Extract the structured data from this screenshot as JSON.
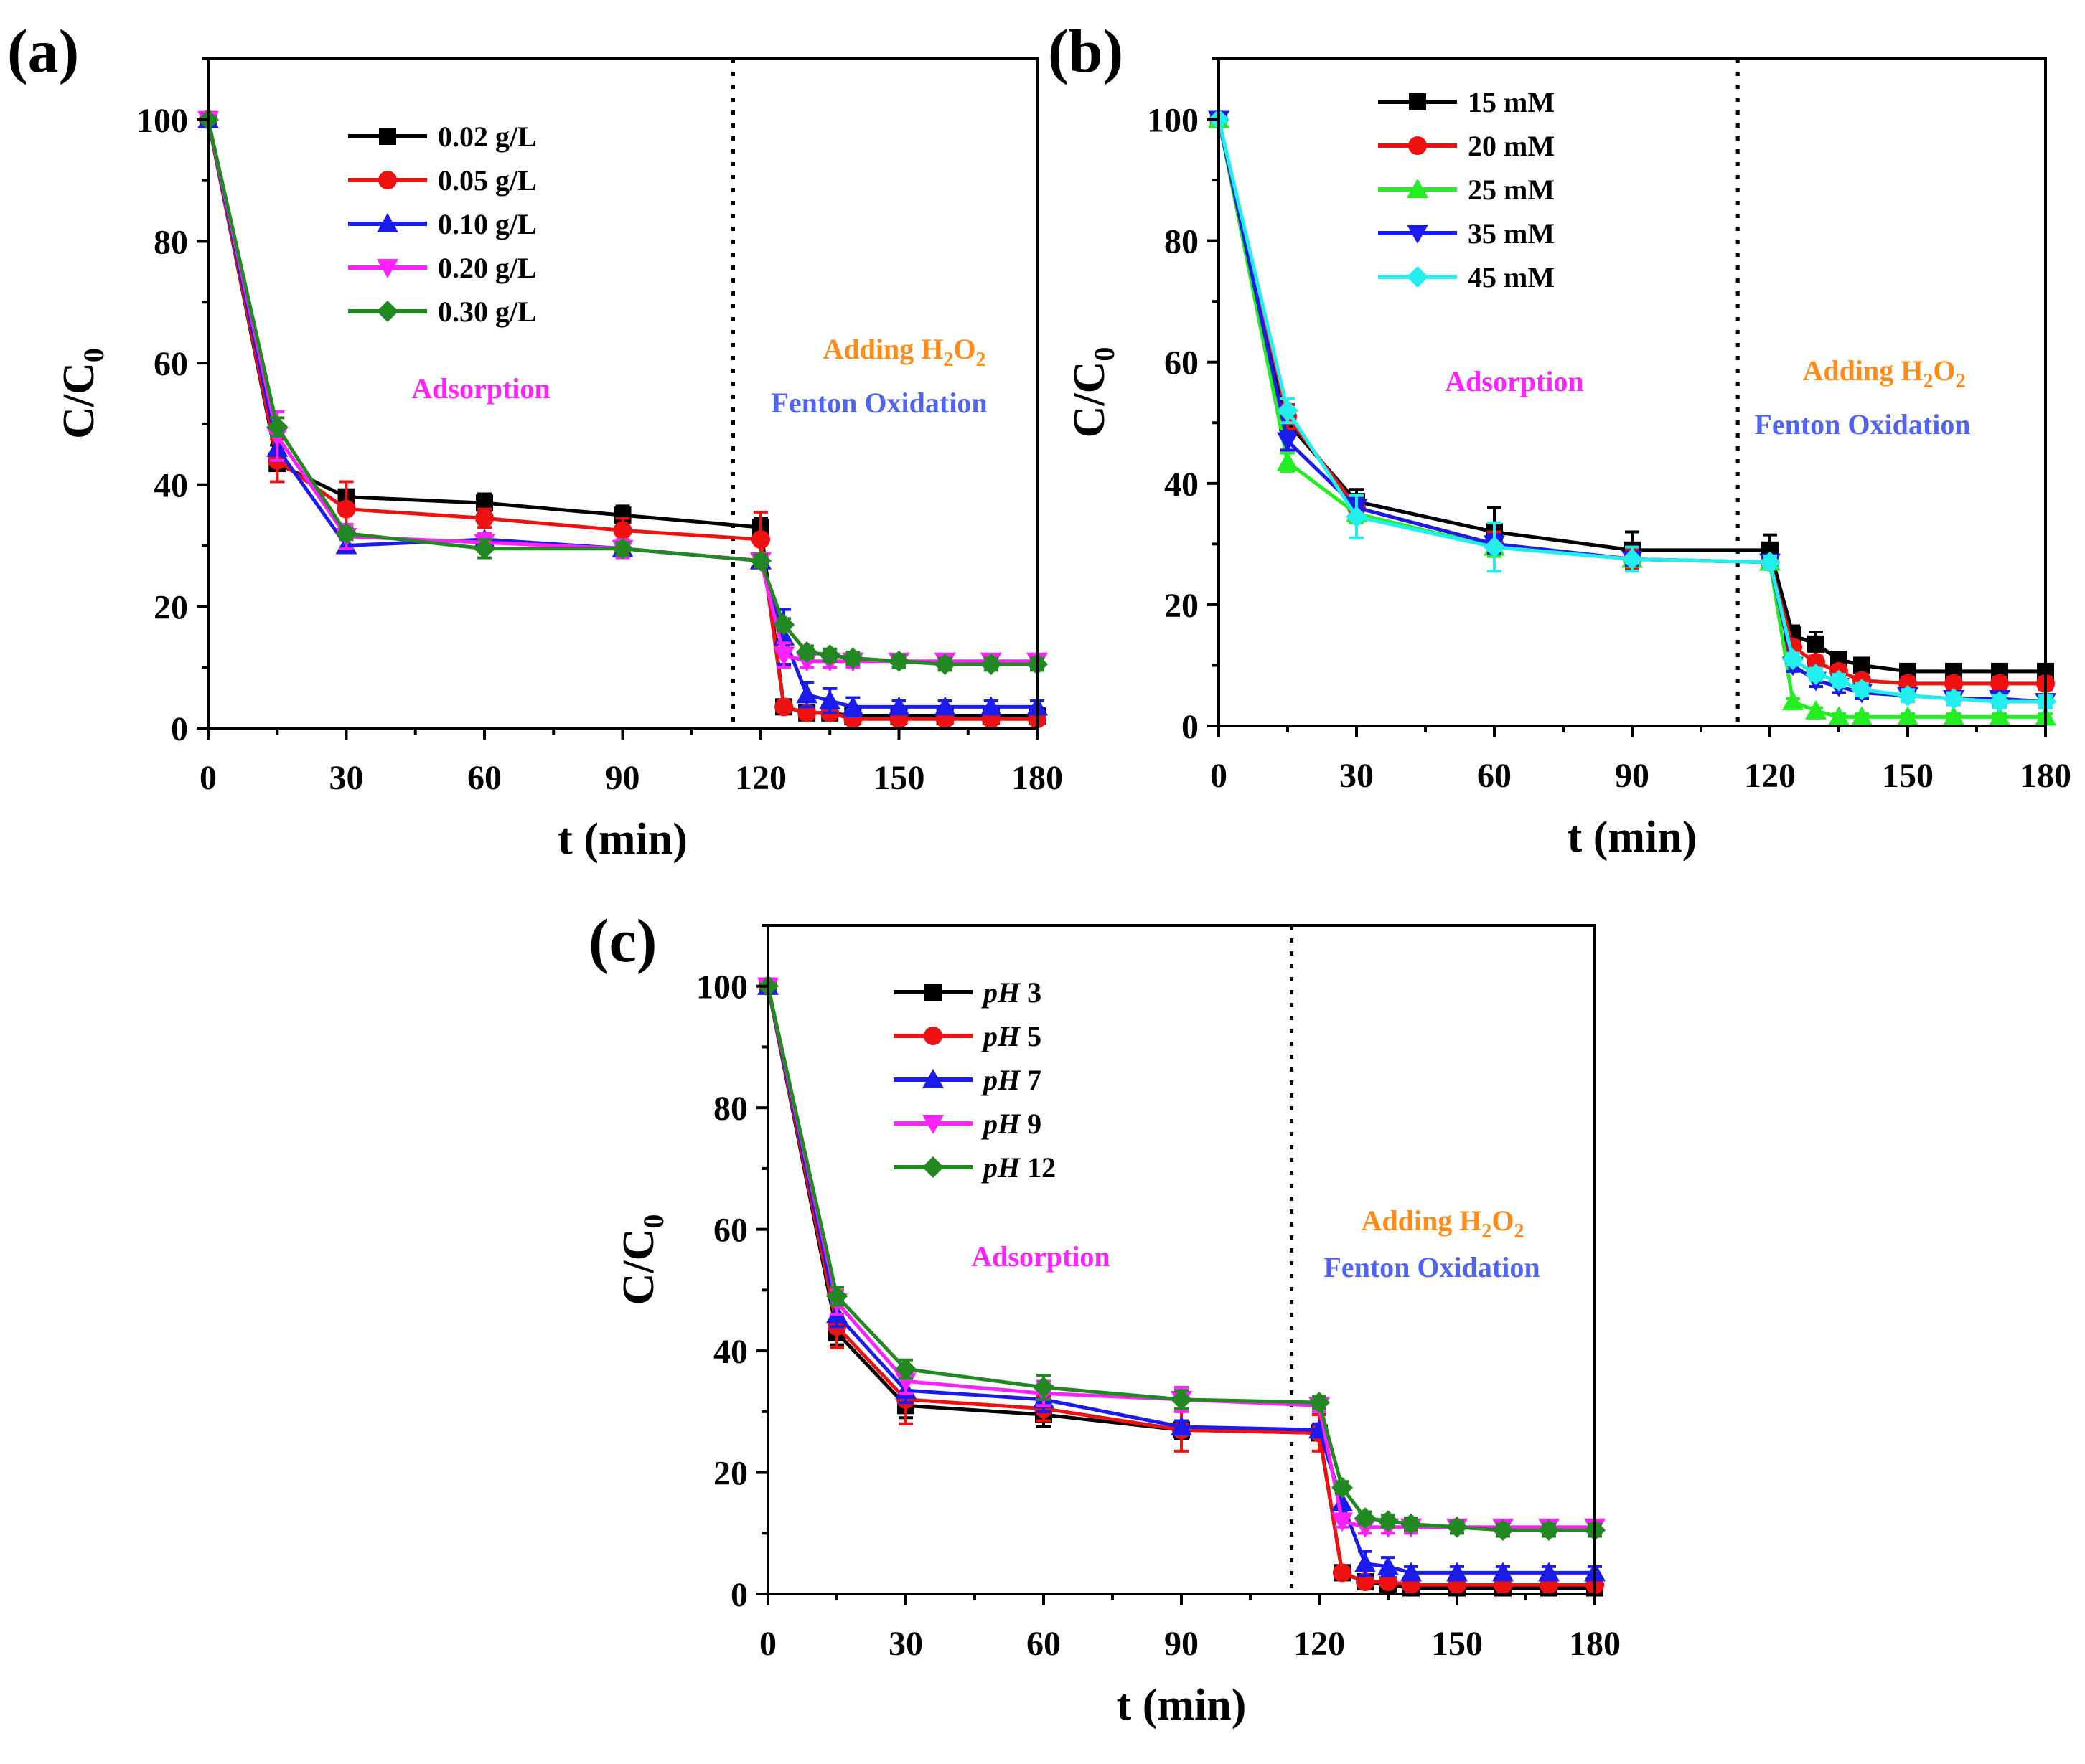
{
  "colors": {
    "black": "#000000",
    "red": "#ee1111",
    "blue": "#1b1bee",
    "magenta": "#ff22ff",
    "green": "#228822",
    "cyan": "#22eeee",
    "lime": "#22ee22",
    "adsorption_text": "#ff22ff",
    "adding_text": "#ff8c1a",
    "fenton_text": "#4f63f5"
  },
  "chart_data": [
    {
      "id": "a",
      "panel_label": "(a)",
      "type": "line",
      "xlabel": "t (min)",
      "ylabel_main": "C/C",
      "ylabel_sub": "0",
      "xlim": [
        0,
        180
      ],
      "ylim": [
        0,
        110
      ],
      "xticks": [
        "0",
        "30",
        "60",
        "90",
        "120",
        "150",
        "180"
      ],
      "yticks": [
        "0",
        "20",
        "40",
        "60",
        "80",
        "100"
      ],
      "divider_x": 114,
      "annotations": {
        "adsorption": "Adsorption",
        "adding_prefix": "Adding H",
        "adding_sub1": "2",
        "adding_mid": "O",
        "adding_sub2": "2",
        "fenton": "Fenton Oxidation"
      },
      "series": [
        {
          "name": "0.02 g/L",
          "color": "#000000",
          "marker": "square",
          "x": [
            0,
            15,
            30,
            60,
            90,
            120,
            125,
            130,
            135,
            140,
            150,
            160,
            170,
            180
          ],
          "y": [
            100,
            43.5,
            38,
            37,
            35,
            33,
            3.5,
            2.5,
            2.5,
            2,
            2,
            2,
            2,
            2
          ],
          "err": [
            0,
            3,
            1,
            1.5,
            1.5,
            1.5,
            0.5,
            0.5,
            0.5,
            0.5,
            0.5,
            0.5,
            0.5,
            0.5
          ]
        },
        {
          "name": "0.05 g/L",
          "color": "#ee1111",
          "marker": "circle",
          "x": [
            0,
            15,
            30,
            60,
            90,
            120,
            125,
            130,
            135,
            140,
            150,
            160,
            170,
            180
          ],
          "y": [
            100,
            44,
            36,
            34.5,
            32.5,
            31,
            3.5,
            2.5,
            2.5,
            1.5,
            1.5,
            1.5,
            1.5,
            1.5
          ],
          "err": [
            0,
            3.5,
            4.5,
            1.5,
            2,
            4.5,
            0.5,
            0.5,
            0.5,
            0.5,
            0.5,
            0.5,
            0.5,
            0.5
          ]
        },
        {
          "name": "0.10 g/L",
          "color": "#1b1bee",
          "marker": "triangle-up",
          "x": [
            0,
            15,
            30,
            60,
            90,
            120,
            125,
            130,
            135,
            140,
            150,
            160,
            170,
            180
          ],
          "y": [
            100,
            46,
            30,
            31,
            29.5,
            27.5,
            15,
            5.5,
            4.5,
            3.5,
            3.5,
            3.5,
            3.5,
            3.5
          ],
          "err": [
            0,
            2,
            1,
            1,
            1,
            1,
            4.5,
            2,
            2,
            1.5,
            1,
            1,
            1,
            1
          ]
        },
        {
          "name": "0.20 g/L",
          "color": "#ff22ff",
          "marker": "triangle-down",
          "x": [
            0,
            15,
            30,
            60,
            90,
            120,
            125,
            130,
            135,
            140,
            150,
            160,
            170,
            180
          ],
          "y": [
            100,
            48,
            31.5,
            30.5,
            29.5,
            27.5,
            12,
            11,
            11,
            11,
            11,
            11,
            11,
            11
          ],
          "err": [
            0,
            4,
            2,
            1.5,
            1.5,
            1,
            2,
            1,
            1,
            1,
            1,
            1,
            1,
            1
          ]
        },
        {
          "name": "0.30 g/L",
          "color": "#228822",
          "marker": "diamond",
          "x": [
            0,
            15,
            30,
            60,
            90,
            120,
            125,
            130,
            135,
            140,
            150,
            160,
            170,
            180
          ],
          "y": [
            100,
            49.5,
            32,
            29.5,
            29.5,
            27.5,
            17,
            12.5,
            12,
            11.5,
            11,
            10.5,
            10.5,
            10.5
          ],
          "err": [
            0,
            1.5,
            1,
            1.5,
            1,
            1,
            1,
            1,
            1,
            1,
            1,
            1,
            1,
            1
          ]
        }
      ]
    },
    {
      "id": "b",
      "panel_label": "(b)",
      "type": "line",
      "xlabel": "t (min)",
      "ylabel_main": "C/C",
      "ylabel_sub": "0",
      "xlim": [
        0,
        180
      ],
      "ylim": [
        0,
        110
      ],
      "xticks": [
        "0",
        "30",
        "60",
        "90",
        "120",
        "150",
        "180"
      ],
      "yticks": [
        "0",
        "20",
        "40",
        "60",
        "80",
        "100"
      ],
      "divider_x": 113,
      "annotations": {
        "adsorption": "Adsorption",
        "adding_prefix": "Adding H",
        "adding_sub1": "2",
        "adding_mid": "O",
        "adding_sub2": "2",
        "fenton": "Fenton Oxidation"
      },
      "series": [
        {
          "name": "15 mM",
          "color": "#000000",
          "marker": "square",
          "x": [
            0,
            15,
            30,
            60,
            90,
            120,
            125,
            130,
            135,
            140,
            150,
            160,
            170,
            180
          ],
          "y": [
            100,
            50,
            37,
            32,
            29,
            29,
            15,
            13.5,
            11,
            10,
            9,
            9,
            9,
            9
          ],
          "err": [
            0,
            2,
            2,
            4,
            3,
            2.5,
            1.5,
            2,
            1,
            1,
            1,
            1,
            1,
            1
          ]
        },
        {
          "name": "20 mM",
          "color": "#ee1111",
          "marker": "circle",
          "x": [
            0,
            15,
            30,
            60,
            90,
            120,
            125,
            130,
            135,
            140,
            150,
            160,
            170,
            180
          ],
          "y": [
            100,
            51,
            36,
            30,
            27.5,
            27,
            13,
            10.5,
            9,
            7.5,
            7,
            7,
            7,
            7
          ],
          "err": [
            0,
            2,
            1.5,
            2,
            1.5,
            1,
            1,
            1,
            1,
            1,
            1,
            1,
            1,
            1
          ]
        },
        {
          "name": "25 mM",
          "color": "#22ee22",
          "marker": "triangle-up",
          "x": [
            0,
            15,
            30,
            60,
            90,
            120,
            125,
            130,
            135,
            140,
            150,
            160,
            170,
            180
          ],
          "y": [
            100,
            43.5,
            35,
            29.5,
            27.5,
            27,
            4,
            2.5,
            1.5,
            1.5,
            1.5,
            1.5,
            1.5,
            1.5
          ],
          "err": [
            0,
            1.5,
            1.5,
            1.5,
            1,
            1,
            0.5,
            0.5,
            0.5,
            0.5,
            0.5,
            0.5,
            0.5,
            0.5
          ]
        },
        {
          "name": "35 mM",
          "color": "#1b1bee",
          "marker": "triangle-down",
          "x": [
            0,
            15,
            30,
            60,
            90,
            120,
            125,
            130,
            135,
            140,
            150,
            160,
            170,
            180
          ],
          "y": [
            100,
            47,
            36,
            30,
            27.5,
            27,
            10,
            7.5,
            6.5,
            5.5,
            5,
            4.5,
            4.5,
            4
          ],
          "err": [
            0,
            1.5,
            1.5,
            1.5,
            1,
            1,
            1,
            1,
            1,
            1,
            1,
            1,
            1,
            1
          ]
        },
        {
          "name": "45 mM",
          "color": "#22eeee",
          "marker": "diamond",
          "x": [
            0,
            15,
            30,
            60,
            90,
            120,
            125,
            130,
            135,
            140,
            150,
            160,
            170,
            180
          ],
          "y": [
            100,
            52,
            34.5,
            29.5,
            27.5,
            27,
            11,
            8.5,
            7.5,
            6,
            5,
            4.5,
            4,
            4
          ],
          "err": [
            0,
            2,
            3.5,
            4,
            2,
            1,
            1,
            1,
            1,
            1,
            1,
            1,
            1,
            1
          ]
        }
      ]
    },
    {
      "id": "c",
      "panel_label": "(c)",
      "type": "line",
      "xlabel": "t (min)",
      "ylabel_main": "C/C",
      "ylabel_sub": "0",
      "xlim": [
        0,
        180
      ],
      "ylim": [
        0,
        110
      ],
      "xticks": [
        "0",
        "30",
        "60",
        "90",
        "120",
        "150",
        "180"
      ],
      "yticks": [
        "0",
        "20",
        "40",
        "60",
        "80",
        "100"
      ],
      "divider_x": 114,
      "annotations": {
        "adsorption": "Adsorption",
        "adding_prefix": "Adding H",
        "adding_sub1": "2",
        "adding_mid": "O",
        "adding_sub2": "2",
        "fenton": "Fenton Oxidation"
      },
      "series": [
        {
          "name": "pH 3",
          "name_italic": "pH",
          "name_rest": " 3",
          "color": "#000000",
          "marker": "square",
          "x": [
            0,
            15,
            30,
            60,
            90,
            120,
            125,
            130,
            135,
            140,
            150,
            160,
            170,
            180
          ],
          "y": [
            100,
            43,
            31,
            29.5,
            27,
            26.5,
            3.5,
            2,
            1.5,
            1,
            1,
            1,
            1,
            1
          ],
          "err": [
            0,
            2,
            2,
            2,
            1.5,
            1,
            0.5,
            0.5,
            0.5,
            0.5,
            0.5,
            0.5,
            0.5,
            0.5
          ]
        },
        {
          "name": "pH 5",
          "name_italic": "pH",
          "name_rest": " 5",
          "color": "#ee1111",
          "marker": "circle",
          "x": [
            0,
            15,
            30,
            60,
            90,
            120,
            125,
            130,
            135,
            140,
            150,
            160,
            170,
            180
          ],
          "y": [
            100,
            44,
            32,
            30.5,
            27,
            26.5,
            3.5,
            2,
            2,
            1.5,
            1.5,
            1.5,
            1.5,
            1.5
          ],
          "err": [
            0,
            3.5,
            4,
            2,
            3.5,
            3,
            0.5,
            0.5,
            0.5,
            0.5,
            0.5,
            0.5,
            0.5,
            0.5
          ]
        },
        {
          "name": "pH 7",
          "name_italic": "pH",
          "name_rest": " 7",
          "color": "#1b1bee",
          "marker": "triangle-up",
          "x": [
            0,
            15,
            30,
            60,
            90,
            120,
            125,
            130,
            135,
            140,
            150,
            160,
            170,
            180
          ],
          "y": [
            100,
            46,
            33.5,
            32,
            27.5,
            27,
            15,
            5,
            4.5,
            3.5,
            3.5,
            3.5,
            3.5,
            3.5
          ],
          "err": [
            0,
            2,
            2,
            2,
            1,
            1,
            2,
            2,
            1.5,
            1,
            1,
            1,
            1,
            1
          ]
        },
        {
          "name": "pH 9",
          "name_italic": "pH",
          "name_rest": " 9",
          "color": "#ff22ff",
          "marker": "triangle-down",
          "x": [
            0,
            15,
            30,
            60,
            90,
            120,
            125,
            130,
            135,
            140,
            150,
            160,
            170,
            180
          ],
          "y": [
            100,
            48,
            35,
            33,
            32,
            31,
            12,
            11,
            11,
            11,
            11,
            11,
            11,
            11
          ],
          "err": [
            0,
            2,
            2,
            2,
            2,
            1,
            1,
            1,
            1,
            1,
            1,
            1,
            1,
            1
          ]
        },
        {
          "name": "pH 12",
          "name_italic": "pH",
          "name_rest": " 12",
          "color": "#228822",
          "marker": "diamond",
          "x": [
            0,
            15,
            30,
            60,
            90,
            120,
            125,
            130,
            135,
            140,
            150,
            160,
            170,
            180
          ],
          "y": [
            100,
            49,
            37,
            34,
            32,
            31.5,
            17.5,
            12.5,
            12,
            11.5,
            11,
            10.5,
            10.5,
            10.5
          ],
          "err": [
            0,
            1.5,
            1.5,
            2,
            1.5,
            1,
            1,
            1,
            1,
            1,
            1,
            1,
            1,
            1
          ]
        }
      ]
    }
  ]
}
